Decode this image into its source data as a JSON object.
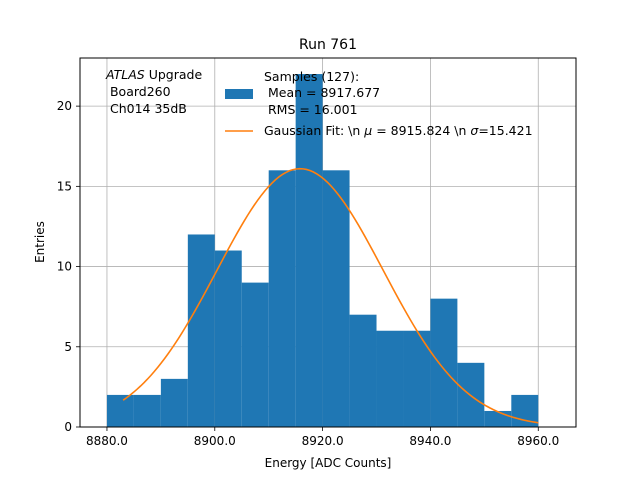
{
  "chart_data": {
    "type": "bar",
    "title": "Run 761",
    "xlabel": "Energy [ADC Counts]",
    "ylabel": "Entries",
    "xlim": [
      8875,
      8967
    ],
    "ylim": [
      0,
      23
    ],
    "grid": true,
    "legend_position": "top-right",
    "xticks": [
      8880,
      8900,
      8920,
      8940,
      8960
    ],
    "xtick_labels": [
      "8880.0",
      "8900.0",
      "8920.0",
      "8940.0",
      "8960.0"
    ],
    "yticks": [
      0,
      5,
      10,
      15,
      20
    ],
    "ytick_labels": [
      "0",
      "5",
      "10",
      "15",
      "20"
    ],
    "bin_edges": [
      8880,
      8885,
      8890,
      8895,
      8900,
      8905,
      8910,
      8915,
      8920,
      8925,
      8930,
      8935,
      8940,
      8945,
      8950,
      8955,
      8960
    ],
    "values": [
      2,
      2,
      3,
      12,
      11,
      9,
      16,
      22,
      16,
      7,
      6,
      6,
      8,
      4,
      1,
      2
    ],
    "bar_color": "#1f77b4",
    "fit": {
      "name": "Gaussian Fit",
      "color": "#ff7f0e",
      "mu": 8915.824,
      "sigma": 15.421,
      "x_range": [
        8883,
        8960
      ],
      "peak": 16.1
    },
    "annotation": {
      "line1_italic": "ATLAS",
      "line1_rest": " Upgrade",
      "line2": " Board260",
      "line3": " Ch014 35dB"
    },
    "legend": {
      "samples_line1": "Samples (127):",
      "samples_line2": " Mean = 8917.677",
      "samples_line3": " RMS = 16.001",
      "fit_prefix": "Gaussian Fit: \\n ",
      "fit_mu_symbol": "μ",
      "fit_mu_value": " = 8915.824 \\n ",
      "fit_sigma_symbol": "σ",
      "fit_sigma_value": "=15.421"
    }
  }
}
